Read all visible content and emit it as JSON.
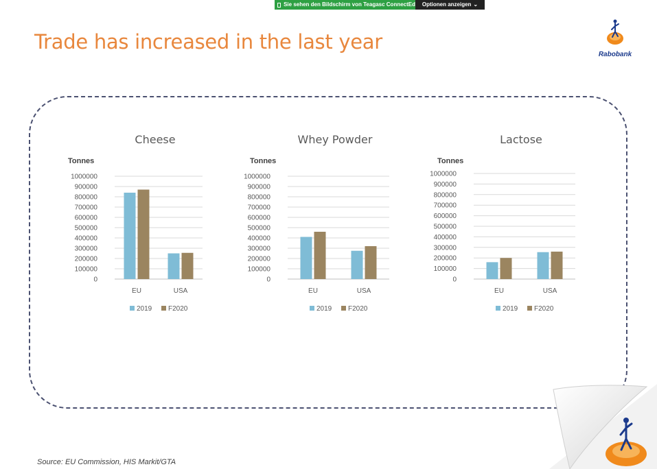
{
  "banner": {
    "share_text": "Sie sehen den Bildschirm von Teagasc ConnectEd",
    "options_label": "Optionen anzeigen"
  },
  "slide": {
    "title": "Trade has increased in the last year",
    "logo_text": "Rabobank",
    "source": "Source: EU Commission, HIS Markit/GTA"
  },
  "colors": {
    "title": "#e8873d",
    "series_2019": "#7fbcd6",
    "series_f2020": "#9b8560",
    "frame": "#4a5070",
    "brand": "#1b3a8c"
  },
  "chart_data": [
    {
      "type": "bar",
      "title": "Cheese",
      "ylabel": "Tonnes",
      "categories": [
        "EU",
        "USA"
      ],
      "ylim": [
        0,
        1000000
      ],
      "yticks": [
        "0",
        "100000",
        "200000",
        "300000",
        "400000",
        "500000",
        "600000",
        "700000",
        "800000",
        "900000",
        "1000000"
      ],
      "grid": true,
      "legend": "bottom",
      "series": [
        {
          "name": "2019",
          "values": [
            840000,
            250000
          ]
        },
        {
          "name": "F2020",
          "values": [
            870000,
            255000
          ]
        }
      ]
    },
    {
      "type": "bar",
      "title": "Whey Powder",
      "ylabel": "Tonnes",
      "categories": [
        "EU",
        "USA"
      ],
      "ylim": [
        0,
        1000000
      ],
      "yticks": [
        "0",
        "100000",
        "200000",
        "300000",
        "400000",
        "500000",
        "600000",
        "700000",
        "800000",
        "900000",
        "1000000"
      ],
      "grid": true,
      "legend": "bottom",
      "series": [
        {
          "name": "2019",
          "values": [
            410000,
            275000
          ]
        },
        {
          "name": "F2020",
          "values": [
            460000,
            320000
          ]
        }
      ]
    },
    {
      "type": "bar",
      "title": "Lactose",
      "ylabel": "Tonnes",
      "categories": [
        "EU",
        "USA"
      ],
      "ylim": [
        0,
        1000000
      ],
      "yticks": [
        "0",
        "100000",
        "200000",
        "300000",
        "400000",
        "500000",
        "600000",
        "700000",
        "800000",
        "900000",
        "1000000"
      ],
      "grid": true,
      "legend": "bottom",
      "series": [
        {
          "name": "2019",
          "values": [
            160000,
            255000
          ]
        },
        {
          "name": "F2020",
          "values": [
            200000,
            260000
          ]
        }
      ]
    }
  ]
}
